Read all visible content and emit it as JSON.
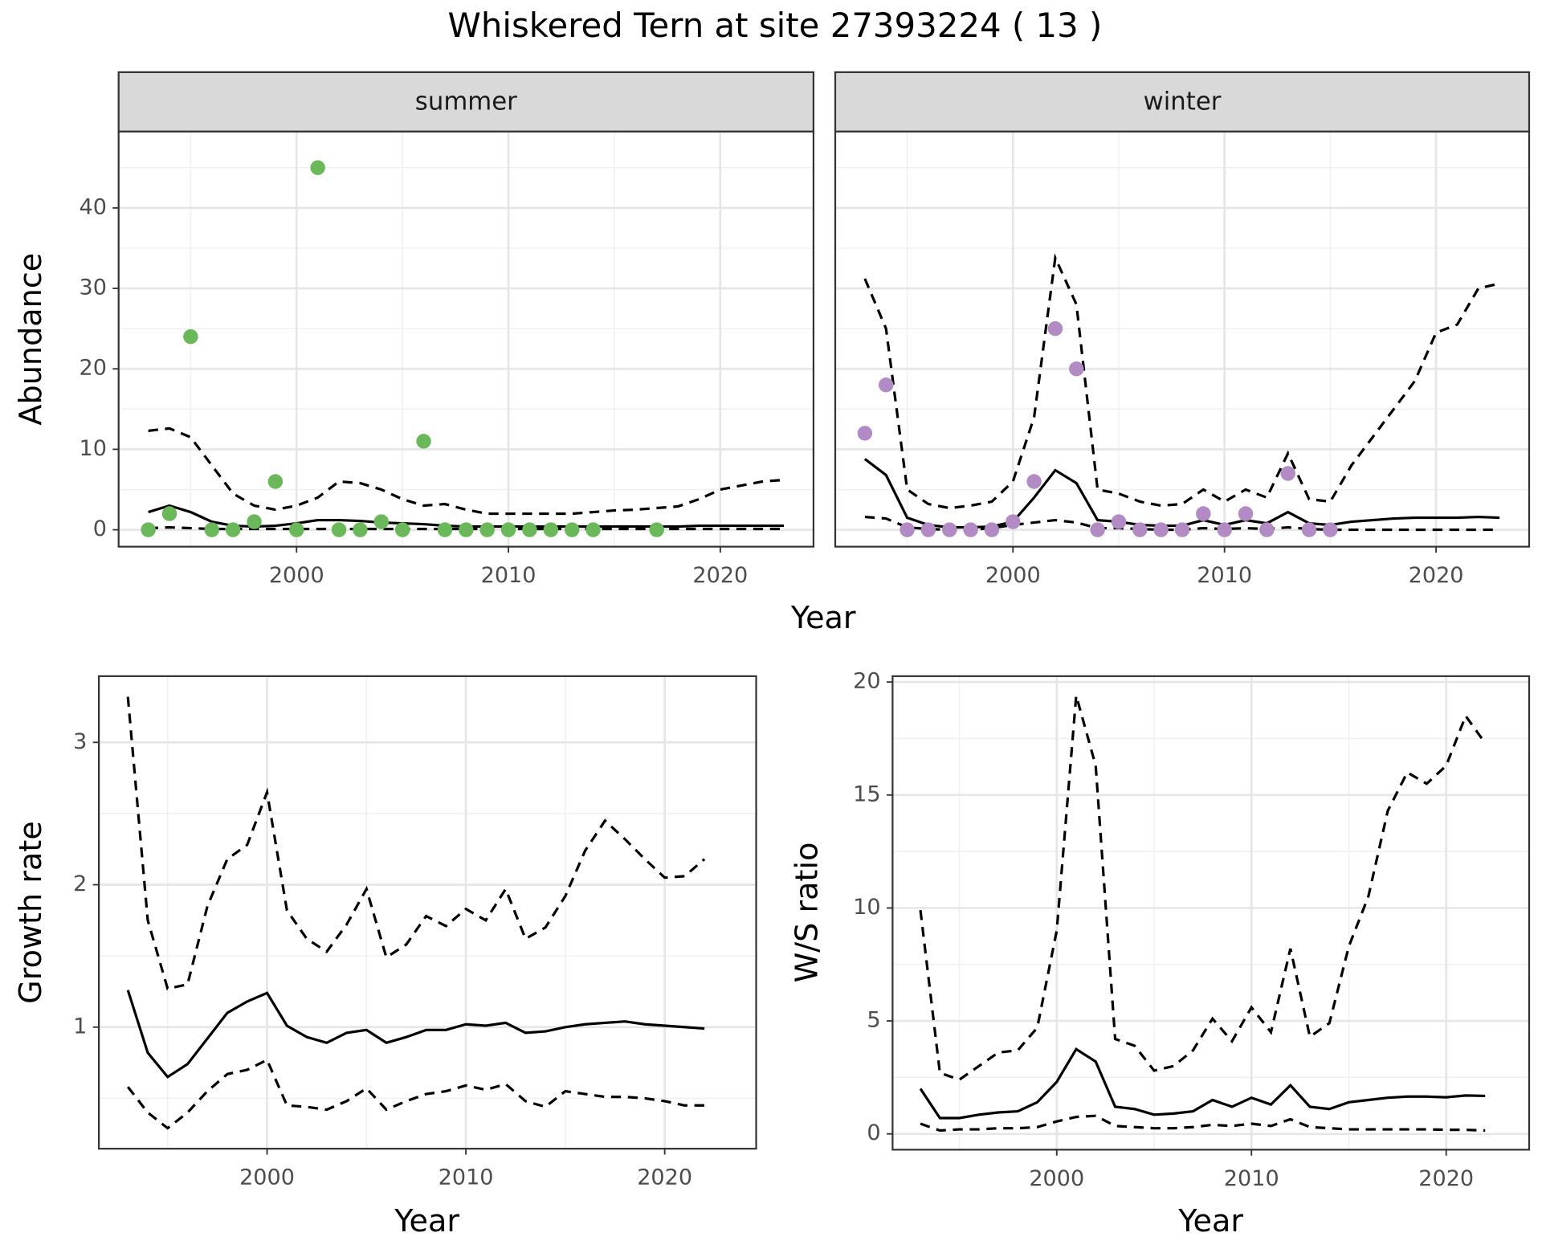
{
  "title": "Whiskered Tern at site 27393224 ( 13 )",
  "chart_data": [
    {
      "type": "line",
      "facet": "summer",
      "xlabel": "Year",
      "ylabel": "Abundance",
      "xlim": [
        1991.6,
        2024.4
      ],
      "ylim": [
        -2.1,
        49.5
      ],
      "xticks": [
        2000,
        2010,
        2020
      ],
      "yticks": [
        0,
        10,
        20,
        30,
        40
      ],
      "minor_xticks": [
        1995,
        2005,
        2015
      ],
      "minor_yticks": [
        5,
        15,
        25,
        35,
        45
      ],
      "show_ytick_labels": true,
      "grid": true,
      "x": [
        1993,
        1994,
        1995,
        1996,
        1997,
        1998,
        1999,
        2000,
        2001,
        2002,
        2003,
        2004,
        2005,
        2006,
        2007,
        2008,
        2009,
        2010,
        2011,
        2012,
        2013,
        2014,
        2015,
        2016,
        2017,
        2018,
        2019,
        2020,
        2021,
        2022,
        2023
      ],
      "series": [
        {
          "dash": false,
          "color": "#000000",
          "values": [
            2.2,
            3.0,
            2.2,
            1.0,
            0.5,
            0.4,
            0.5,
            0.8,
            1.2,
            1.2,
            1.1,
            0.9,
            0.8,
            0.7,
            0.5,
            0.4,
            0.4,
            0.4,
            0.4,
            0.4,
            0.4,
            0.4,
            0.4,
            0.4,
            0.4,
            0.4,
            0.5,
            0.5,
            0.5,
            0.5,
            0.5
          ]
        },
        {
          "dash": true,
          "color": "#000000",
          "values": [
            12.3,
            12.6,
            11.5,
            8,
            4.5,
            3,
            2.5,
            3,
            4,
            6,
            5.8,
            5,
            3.8,
            3,
            3.2,
            2.5,
            2,
            2,
            2,
            2,
            2,
            2.2,
            2.4,
            2.5,
            2.7,
            2.9,
            3.8,
            5,
            5.5,
            6,
            6.2
          ]
        },
        {
          "dash": true,
          "color": "#000000",
          "values": [
            0.2,
            0.3,
            0.2,
            0.1,
            0.1,
            0.1,
            0.1,
            0.1,
            0.1,
            0.1,
            0.1,
            0.1,
            0.1,
            0.1,
            0.1,
            0.1,
            0.1,
            0.1,
            0.1,
            0.1,
            0.1,
            0.1,
            0.1,
            0.1,
            0.1,
            0.1,
            0.1,
            0.1,
            0.1,
            0.1,
            0.1
          ]
        }
      ],
      "points": {
        "type": "scatter",
        "color": "#6ab85a",
        "x": [
          1993,
          1994,
          1995,
          1996,
          1997,
          1998,
          1999,
          2000,
          2001,
          2002,
          2003,
          2004,
          2005,
          2006,
          2007,
          2008,
          2009,
          2010,
          2011,
          2012,
          2013,
          2014,
          2017
        ],
        "values": [
          0,
          2,
          24,
          0,
          0,
          1,
          6,
          0,
          45,
          0,
          0,
          1,
          0,
          11,
          0,
          0,
          0,
          0,
          0,
          0,
          0,
          0,
          0
        ]
      }
    },
    {
      "type": "line",
      "facet": "winter",
      "xlim": [
        1991.6,
        2024.4
      ],
      "ylim": [
        -2.1,
        49.5
      ],
      "xticks": [
        2000,
        2010,
        2020
      ],
      "yticks": [
        0,
        10,
        20,
        30,
        40
      ],
      "minor_xticks": [
        1995,
        2005,
        2015
      ],
      "minor_yticks": [
        5,
        15,
        25,
        35,
        45
      ],
      "show_ytick_labels": false,
      "grid": true,
      "x": [
        1993,
        1994,
        1995,
        1996,
        1997,
        1998,
        1999,
        2000,
        2001,
        2002,
        2003,
        2004,
        2005,
        2006,
        2007,
        2008,
        2009,
        2010,
        2011,
        2012,
        2013,
        2014,
        2015,
        2016,
        2017,
        2018,
        2019,
        2020,
        2021,
        2022,
        2023
      ],
      "series": [
        {
          "dash": false,
          "color": "#000000",
          "values": [
            8.8,
            6.8,
            1.5,
            0.6,
            0.3,
            0.3,
            0.4,
            1.0,
            4.0,
            7.4,
            5.8,
            1.2,
            1.0,
            0.6,
            0.5,
            0.5,
            1.2,
            0.6,
            1.2,
            0.8,
            2.2,
            0.8,
            0.6,
            1.0,
            1.2,
            1.4,
            1.5,
            1.5,
            1.5,
            1.6,
            1.5
          ]
        },
        {
          "dash": true,
          "color": "#000000",
          "values": [
            31.2,
            25,
            5,
            3.2,
            2.7,
            3,
            3.5,
            6,
            14,
            33.8,
            28,
            5,
            4.5,
            3.5,
            3,
            3.2,
            5,
            3.5,
            5,
            4,
            9.5,
            3.8,
            3.5,
            8,
            11.5,
            15,
            18.5,
            24.5,
            25.5,
            30,
            30.6
          ]
        },
        {
          "dash": true,
          "color": "#000000",
          "values": [
            1.6,
            1.4,
            0.3,
            0.1,
            0,
            0,
            0.2,
            0.6,
            0.9,
            1.2,
            0.9,
            0.2,
            0.2,
            0.1,
            0,
            0,
            0.2,
            0.1,
            0.2,
            0.1,
            0.3,
            0.1,
            0,
            0,
            0,
            0,
            0,
            0,
            0,
            0,
            0
          ]
        }
      ],
      "points": {
        "type": "scatter",
        "color": "#b28ac4",
        "x": [
          1993,
          1994,
          1995,
          1996,
          1997,
          1998,
          1999,
          2000,
          2001,
          2002,
          2003,
          2004,
          2005,
          2006,
          2007,
          2008,
          2009,
          2010,
          2011,
          2012,
          2013,
          2014,
          2015
        ],
        "values": [
          12,
          18,
          0,
          0,
          0,
          0,
          0,
          1,
          6,
          25,
          20,
          0,
          1,
          0,
          0,
          0,
          2,
          0,
          2,
          0,
          7,
          0,
          0
        ]
      }
    },
    {
      "type": "line",
      "xlabel": "Year",
      "ylabel": "Growth rate",
      "xlim": [
        1991.54,
        2024.6
      ],
      "ylim": [
        0.146,
        3.465
      ],
      "xticks": [
        2000,
        2010,
        2020
      ],
      "yticks": [
        1,
        2,
        3
      ],
      "minor_xticks": [
        1995,
        2005,
        2015
      ],
      "minor_yticks": [
        0.5,
        1.5,
        2.5
      ],
      "show_ytick_labels": true,
      "grid": true,
      "x": [
        1993,
        1994,
        1995,
        1996,
        1997,
        1998,
        1999,
        2000,
        2001,
        2002,
        2003,
        2004,
        2005,
        2006,
        2007,
        2008,
        2009,
        2010,
        2011,
        2012,
        2013,
        2014,
        2015,
        2016,
        2017,
        2018,
        2019,
        2020,
        2021,
        2022
      ],
      "series": [
        {
          "dash": false,
          "color": "#000000",
          "values": [
            1.26,
            0.82,
            0.65,
            0.74,
            0.92,
            1.1,
            1.18,
            1.24,
            1.01,
            0.93,
            0.89,
            0.96,
            0.98,
            0.89,
            0.93,
            0.98,
            0.98,
            1.02,
            1.01,
            1.03,
            0.96,
            0.97,
            1.0,
            1.02,
            1.03,
            1.04,
            1.02,
            1.01,
            1.0,
            0.99
          ]
        },
        {
          "dash": true,
          "color": "#000000",
          "values": [
            3.32,
            1.75,
            1.27,
            1.3,
            1.85,
            2.18,
            2.28,
            2.65,
            1.82,
            1.62,
            1.53,
            1.72,
            1.97,
            1.49,
            1.58,
            1.78,
            1.71,
            1.83,
            1.75,
            1.97,
            1.62,
            1.7,
            1.92,
            2.24,
            2.45,
            2.32,
            2.18,
            2.05,
            2.06,
            2.18
          ]
        },
        {
          "dash": true,
          "color": "#000000",
          "values": [
            0.58,
            0.4,
            0.29,
            0.4,
            0.55,
            0.67,
            0.7,
            0.77,
            0.45,
            0.44,
            0.42,
            0.48,
            0.57,
            0.42,
            0.48,
            0.53,
            0.55,
            0.59,
            0.56,
            0.6,
            0.48,
            0.44,
            0.55,
            0.53,
            0.51,
            0.51,
            0.5,
            0.48,
            0.45,
            0.45
          ]
        }
      ]
    },
    {
      "type": "line",
      "xlabel": "Year",
      "ylabel": "W/S ratio",
      "xlim": [
        1991.57,
        2024.26
      ],
      "ylim": [
        -0.7,
        20.26
      ],
      "xticks": [
        2000,
        2010,
        2020
      ],
      "yticks": [
        0,
        5,
        10,
        15,
        20
      ],
      "minor_xticks": [
        1995,
        2005,
        2015
      ],
      "minor_yticks": [
        2.5,
        7.5,
        12.5,
        17.5
      ],
      "show_ytick_labels": true,
      "grid": true,
      "x": [
        1993,
        1994,
        1995,
        1996,
        1997,
        1998,
        1999,
        2000,
        2001,
        2002,
        2003,
        2004,
        2005,
        2006,
        2007,
        2008,
        2009,
        2010,
        2011,
        2012,
        2013,
        2014,
        2015,
        2016,
        2017,
        2018,
        2019,
        2020,
        2021,
        2022
      ],
      "series": [
        {
          "dash": false,
          "color": "#000000",
          "values": [
            2.0,
            0.7,
            0.7,
            0.85,
            0.95,
            1.0,
            1.4,
            2.3,
            3.75,
            3.2,
            1.2,
            1.1,
            0.85,
            0.9,
            1.0,
            1.5,
            1.2,
            1.6,
            1.3,
            2.15,
            1.2,
            1.1,
            1.4,
            1.5,
            1.6,
            1.65,
            1.65,
            1.62,
            1.7,
            1.68
          ]
        },
        {
          "dash": true,
          "color": "#000000",
          "values": [
            9.9,
            2.7,
            2.4,
            3.0,
            3.6,
            3.7,
            4.7,
            9.0,
            19.4,
            16.3,
            4.2,
            3.9,
            2.8,
            3.0,
            3.7,
            5.1,
            4.1,
            5.6,
            4.5,
            8.2,
            4.3,
            4.9,
            8.3,
            10.5,
            14.3,
            16.0,
            15.5,
            16.3,
            18.5,
            17.3
          ]
        },
        {
          "dash": true,
          "color": "#000000",
          "values": [
            0.45,
            0.15,
            0.2,
            0.2,
            0.25,
            0.25,
            0.3,
            0.55,
            0.75,
            0.8,
            0.35,
            0.3,
            0.25,
            0.25,
            0.3,
            0.4,
            0.35,
            0.45,
            0.35,
            0.65,
            0.3,
            0.25,
            0.2,
            0.2,
            0.2,
            0.2,
            0.2,
            0.18,
            0.18,
            0.15
          ]
        }
      ]
    }
  ]
}
